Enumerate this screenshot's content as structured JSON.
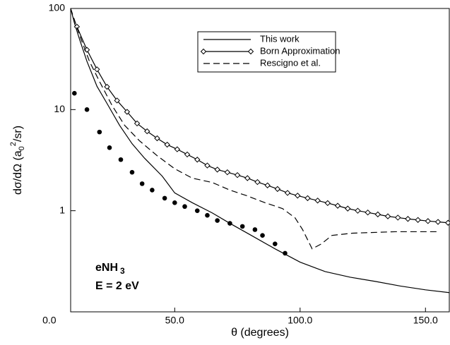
{
  "chart_data": {
    "type": "line",
    "log_y": true,
    "xlabel": "θ (degrees)",
    "ylabel": {
      "start": "dσ/dΩ (a",
      "sub": "0",
      "sup": "2",
      "end": "/sr)"
    },
    "annotations": {
      "target": "eNH",
      "target_sub": "3",
      "energy": "E = 2 eV"
    },
    "xlim": [
      8.5,
      159.5
    ],
    "ylim": [
      0.1,
      100
    ],
    "xticks": [
      {
        "value": 0,
        "label": "0.0"
      },
      {
        "value": 50,
        "label": "50.0"
      },
      {
        "value": 100,
        "label": "100.0"
      },
      {
        "value": 150,
        "label": "150.0"
      }
    ],
    "yticks": [
      1,
      10,
      100
    ],
    "legend": "upper center",
    "series": [
      {
        "name": "This work",
        "color": "#000000",
        "line": "solid",
        "marker": "none",
        "x": [
          8.5,
          10,
          12,
          15,
          19,
          23,
          28,
          33,
          38,
          45,
          50,
          57,
          65,
          72,
          80,
          90,
          100,
          110,
          120,
          130,
          140,
          150,
          159.5
        ],
        "values": [
          100,
          72,
          50,
          30,
          17,
          11.5,
          7,
          4.6,
          3.3,
          2.2,
          1.5,
          1.2,
          0.95,
          0.75,
          0.58,
          0.42,
          0.31,
          0.25,
          0.22,
          0.2,
          0.18,
          0.165,
          0.155
        ]
      },
      {
        "name": "Born Approximation",
        "color": "#000000",
        "line": "solid",
        "marker": "diamond",
        "x": [
          11,
          15,
          19,
          23,
          27,
          31,
          35,
          39,
          43,
          47,
          51,
          55,
          59,
          63,
          67,
          71,
          75,
          79,
          83,
          87,
          91,
          95,
          99,
          103,
          107,
          111,
          115,
          119,
          123,
          127,
          131,
          135,
          139,
          143,
          147,
          151,
          155,
          159
        ],
        "values": [
          66,
          39,
          25,
          16.8,
          12.3,
          9.5,
          7.3,
          6.1,
          5.2,
          4.5,
          4.05,
          3.6,
          3.2,
          2.8,
          2.55,
          2.4,
          2.25,
          2.1,
          1.92,
          1.78,
          1.64,
          1.5,
          1.41,
          1.33,
          1.26,
          1.19,
          1.12,
          1.05,
          1.0,
          0.96,
          0.92,
          0.88,
          0.855,
          0.83,
          0.81,
          0.79,
          0.775,
          0.76
        ]
      },
      {
        "name": "Rescigno et al.",
        "color": "#000000",
        "line": "dashed",
        "marker": "none",
        "x": [
          8.5,
          12,
          16,
          20,
          25,
          30,
          36,
          43,
          50,
          57,
          65,
          72,
          79,
          86,
          93,
          98,
          101,
          104.8,
          108.5,
          112.7,
          121,
          138,
          155
        ],
        "values": [
          100,
          55,
          30,
          19,
          11,
          7,
          4.9,
          3.5,
          2.6,
          2.1,
          1.9,
          1.6,
          1.4,
          1.2,
          1.05,
          0.85,
          0.65,
          0.42,
          0.47,
          0.57,
          0.6,
          0.62,
          0.62
        ]
      },
      {
        "color": "#000000",
        "line": "none",
        "marker": "circle",
        "x": [
          10,
          15,
          20,
          24,
          28.5,
          33,
          37,
          41,
          46,
          50,
          54,
          59,
          63,
          67,
          72,
          77,
          82,
          85,
          90,
          94
        ],
        "values": [
          14.5,
          10,
          6,
          4.2,
          3.2,
          2.4,
          1.85,
          1.6,
          1.33,
          1.2,
          1.1,
          1.0,
          0.9,
          0.8,
          0.75,
          0.7,
          0.65,
          0.57,
          0.47,
          0.38
        ]
      }
    ]
  }
}
